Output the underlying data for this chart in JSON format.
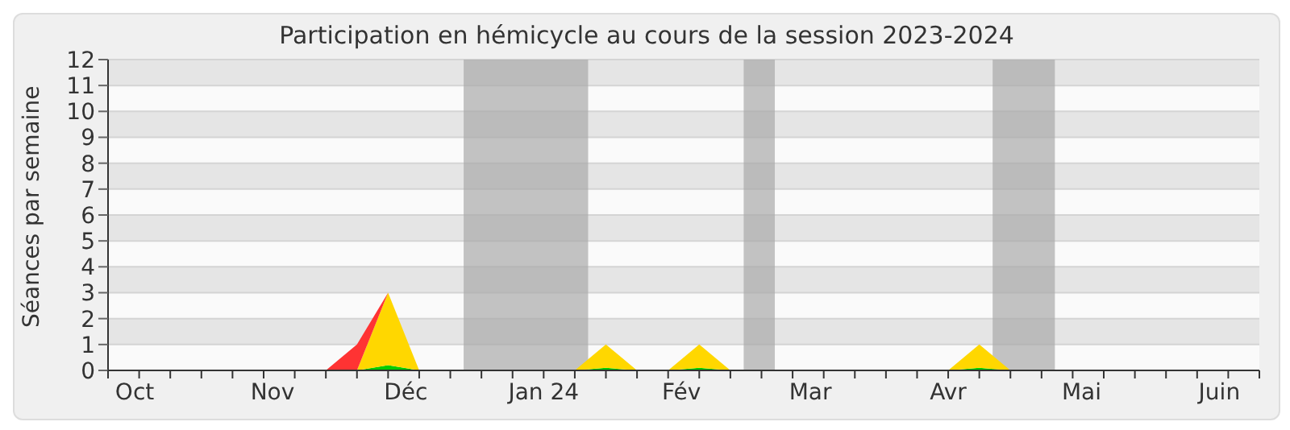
{
  "chart_data": {
    "type": "area",
    "title": "Participation en hémicycle au cours de la session 2023-2024",
    "ylabel": "Séances par semaine",
    "x": [
      "2023-09-25",
      "2023-10-02",
      "2023-10-09",
      "2023-10-16",
      "2023-10-23",
      "2023-10-30",
      "2023-11-06",
      "2023-11-13",
      "2023-11-20",
      "2023-11-27",
      "2023-12-04",
      "2023-12-11",
      "2023-12-18",
      "2023-12-25",
      "2024-01-01",
      "2024-01-08",
      "2024-01-15",
      "2024-01-22",
      "2024-01-29",
      "2024-02-05",
      "2024-02-12",
      "2024-02-19",
      "2024-02-26",
      "2024-03-04",
      "2024-03-11",
      "2024-03-18",
      "2024-03-25",
      "2024-04-01",
      "2024-04-08",
      "2024-04-15",
      "2024-04-22",
      "2024-04-29",
      "2024-05-06",
      "2024-05-13",
      "2024-05-20",
      "2024-05-27",
      "2024-06-03",
      "2024-06-10"
    ],
    "series": [
      {
        "color": "#00cc00",
        "values": [
          0,
          0,
          0,
          0,
          0,
          0,
          0,
          0,
          0,
          0.2,
          0,
          0,
          0,
          0,
          0,
          0,
          0.1,
          0,
          0,
          0.1,
          0,
          0,
          0,
          0,
          0,
          0,
          0,
          0,
          0.1,
          0,
          0,
          0,
          0,
          0,
          0,
          0,
          0,
          0
        ]
      },
      {
        "color": "#ffd700",
        "values": [
          0,
          0,
          0,
          0,
          0,
          0,
          0,
          0,
          0,
          2.8,
          0,
          0,
          0,
          0,
          0,
          0,
          0.9,
          0,
          0,
          0.9,
          0,
          0,
          0,
          0,
          0,
          0,
          0,
          0,
          0.9,
          0,
          0,
          0,
          0,
          0,
          0,
          0,
          0,
          0
        ]
      },
      {
        "color": "#ff3333",
        "values": [
          null,
          null,
          null,
          null,
          null,
          null,
          null,
          0,
          1,
          0,
          null,
          null,
          null,
          null,
          null,
          null,
          null,
          null,
          null,
          null,
          null,
          null,
          null,
          null,
          null,
          null,
          null,
          null,
          null,
          null,
          null,
          null,
          null,
          null,
          null,
          null,
          null,
          null
        ]
      }
    ],
    "stacked": true,
    "xlim": [
      "2023-09-25",
      "2024-06-10"
    ],
    "xticks": [
      {
        "value": "2023-09-25",
        "label": null
      },
      {
        "value": "2023-10-02",
        "label": null
      },
      {
        "value": "2023-10-09",
        "label": null
      },
      {
        "value": "2023-10-16",
        "label": null
      },
      {
        "value": "2023-10-23",
        "label": null
      },
      {
        "value": "2023-10-30",
        "label": null
      },
      {
        "value": "2023-11-06",
        "label": null
      },
      {
        "value": "2023-11-13",
        "label": null
      },
      {
        "value": "2023-11-20",
        "label": null
      },
      {
        "value": "2023-11-27",
        "label": null
      },
      {
        "value": "2023-12-04",
        "label": null
      },
      {
        "value": "2023-12-11",
        "label": null
      },
      {
        "value": "2023-12-18",
        "label": null
      },
      {
        "value": "2023-12-25",
        "label": null
      },
      {
        "value": "2024-01-01",
        "label": null
      },
      {
        "value": "2024-01-08",
        "label": null
      },
      {
        "value": "2024-01-15",
        "label": null
      },
      {
        "value": "2024-01-22",
        "label": null
      },
      {
        "value": "2024-01-29",
        "label": null
      },
      {
        "value": "2024-02-05",
        "label": null
      },
      {
        "value": "2024-02-12",
        "label": null
      },
      {
        "value": "2024-02-19",
        "label": null
      },
      {
        "value": "2024-02-26",
        "label": null
      },
      {
        "value": "2024-03-04",
        "label": null
      },
      {
        "value": "2024-03-11",
        "label": null
      },
      {
        "value": "2024-03-18",
        "label": null
      },
      {
        "value": "2024-03-25",
        "label": null
      },
      {
        "value": "2024-04-01",
        "label": null
      },
      {
        "value": "2024-04-08",
        "label": null
      },
      {
        "value": "2024-04-15",
        "label": null
      },
      {
        "value": "2024-04-22",
        "label": null
      },
      {
        "value": "2024-04-29",
        "label": null
      },
      {
        "value": "2024-05-06",
        "label": null
      },
      {
        "value": "2024-05-13",
        "label": null
      },
      {
        "value": "2024-05-20",
        "label": null
      },
      {
        "value": "2024-05-27",
        "label": null
      },
      {
        "value": "2024-06-03",
        "label": null
      },
      {
        "value": "2024-06-10",
        "label": null
      },
      {
        "value": "2023-10-01",
        "label": "Oct"
      },
      {
        "value": "2023-11-01",
        "label": "Nov"
      },
      {
        "value": "2023-12-01",
        "label": "Déc"
      },
      {
        "value": "2024-01-01",
        "label": "Jan 24"
      },
      {
        "value": "2024-02-01",
        "label": "Fév"
      },
      {
        "value": "2024-03-01",
        "label": "Mar"
      },
      {
        "value": "2024-04-01",
        "label": "Avr"
      },
      {
        "value": "2024-05-01",
        "label": "Mai"
      },
      {
        "value": "2024-06-01",
        "label": "Juin"
      }
    ],
    "ylim": [
      0,
      12
    ],
    "yticks": [
      0,
      1,
      2,
      3,
      4,
      5,
      6,
      7,
      8,
      9,
      10,
      11,
      12
    ],
    "bands": [
      {
        "axis": "x",
        "from": "2023-12-14",
        "to": "2024-01-11",
        "color": "#aaaaaa"
      },
      {
        "axis": "x",
        "from": "2024-02-15",
        "to": "2024-02-22",
        "color": "#aaaaaa"
      },
      {
        "axis": "x",
        "from": "2024-04-11",
        "to": "2024-04-25",
        "color": "#aaaaaa"
      }
    ],
    "grid": "y"
  }
}
